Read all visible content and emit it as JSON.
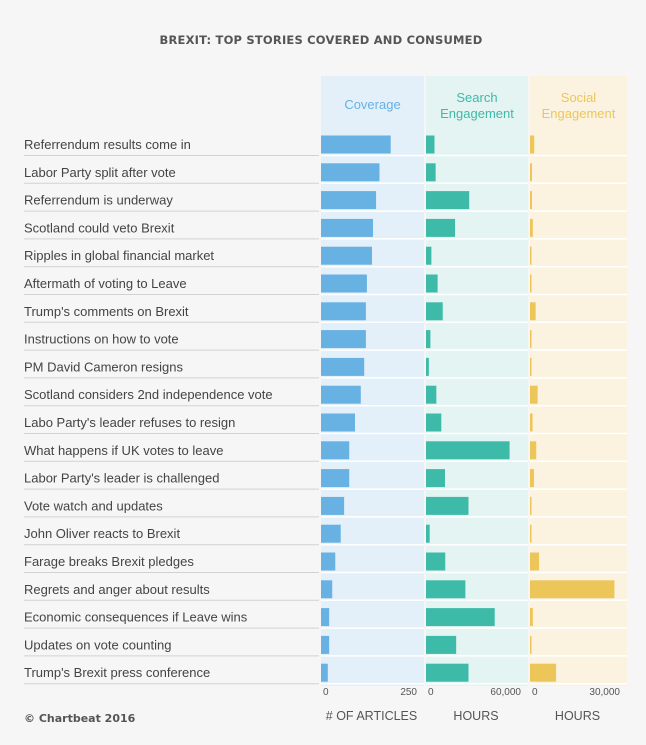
{
  "chart_data": {
    "type": "bar",
    "title": "BREXIT: TOP STORIES COVERED AND CONSUMED",
    "credit": "© Chartbeat 2016",
    "categories": [
      "Referrendum results come in",
      "Labor Party split after vote",
      "Referrendum is underway",
      "Scotland could veto Brexit",
      "Ripples in global financial market",
      "Aftermath of voting to Leave",
      "Trump's comments on Brexit",
      "Instructions on how to vote",
      "PM David Cameron resigns",
      "Scotland considers 2nd independence vote",
      "Labo Party's leader refuses to resign",
      "What happens if UK votes to leave",
      "Labor Party's leader is challenged",
      "Vote watch and updates",
      "John Oliver reacts to Brexit",
      "Farage breaks Brexit pledges",
      "Regrets and anger about results",
      "Economic consequences if Leave wins",
      "Updates on vote counting",
      "Trump's Brexit press conference"
    ],
    "panels": [
      {
        "name": "Coverage",
        "unit": "# OF ARTICLES",
        "range": [
          0,
          250
        ],
        "ticks": [
          "0",
          "250"
        ],
        "bar_color": "#68b1e3",
        "bg_color": "#e3f0f9",
        "header_color": "#68b1e3",
        "values": [
          205,
          172,
          162,
          153,
          150,
          135,
          132,
          132,
          127,
          117,
          100,
          83,
          83,
          68,
          58,
          42,
          33,
          24,
          24,
          20
        ]
      },
      {
        "name": "Search Engagement",
        "unit": "HOURS",
        "range": [
          0,
          60000
        ],
        "ticks": [
          "0",
          "60,000"
        ],
        "bar_color": "#3ebaa8",
        "bg_color": "#e3f4f2",
        "header_color": "#3ebaa8",
        "values": [
          6000,
          6800,
          30500,
          20500,
          3800,
          8200,
          11800,
          3100,
          2000,
          7300,
          10800,
          59000,
          13400,
          30000,
          2600,
          13600,
          27800,
          48500,
          21300,
          30000
        ]
      },
      {
        "name": "Social Engagement",
        "unit": "HOURS",
        "range": [
          0,
          30000
        ],
        "ticks": [
          "0",
          "30,000"
        ],
        "bar_color": "#edc65a",
        "bg_color": "#fbf3e0",
        "header_color": "#edc65a",
        "values": [
          1500,
          700,
          700,
          1000,
          400,
          300,
          2000,
          300,
          400,
          2700,
          900,
          2200,
          1400,
          300,
          400,
          3200,
          29800,
          1000,
          300,
          9200
        ]
      }
    ]
  }
}
